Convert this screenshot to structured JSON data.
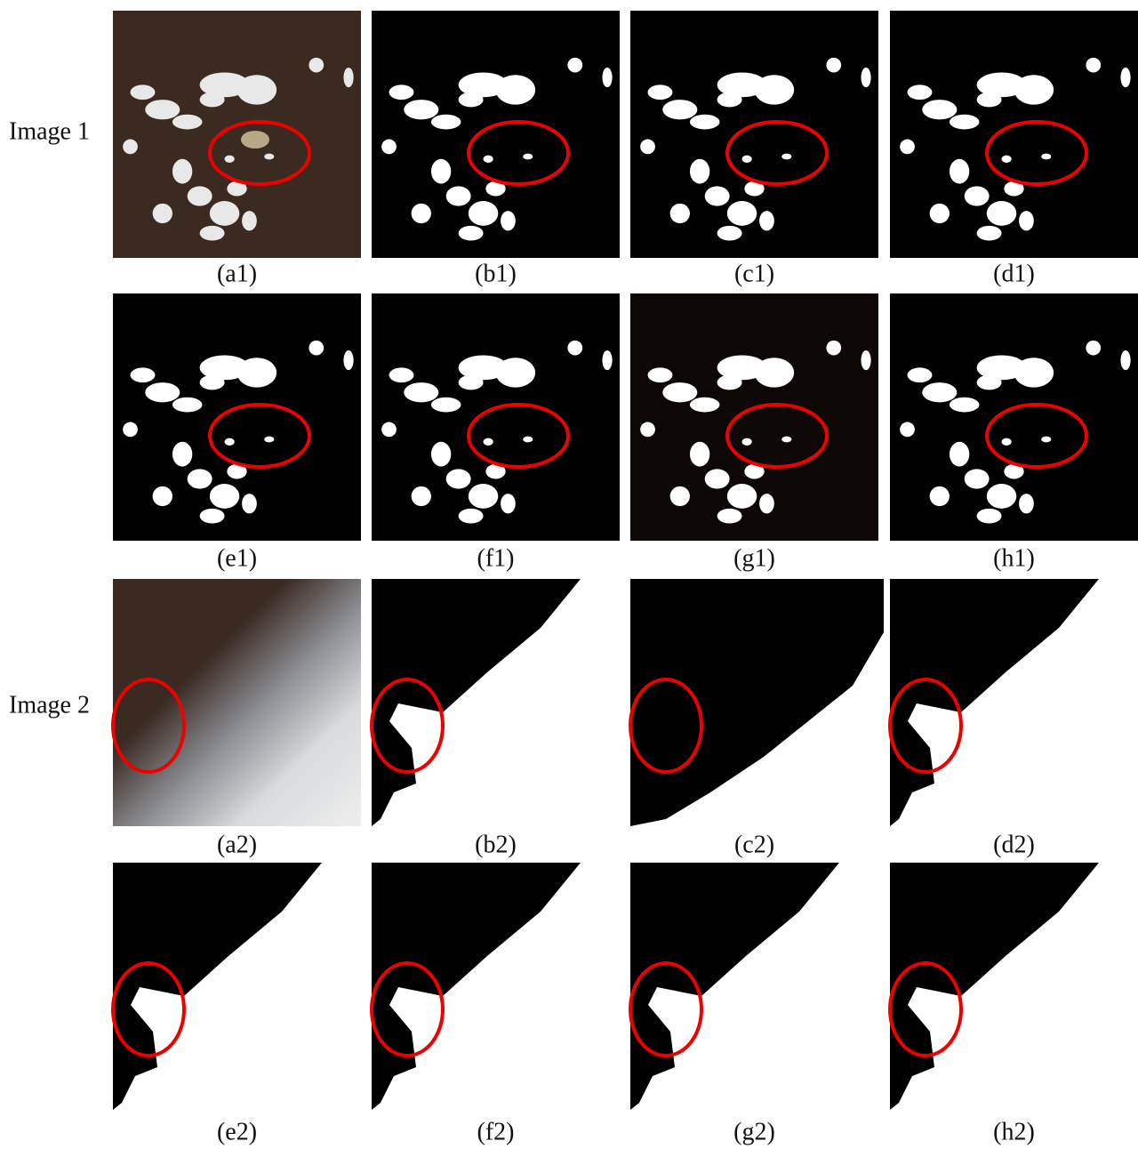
{
  "row_labels": [
    "Image 1",
    "Image 2"
  ],
  "panels": [
    [
      "(a1)",
      "(b1)",
      "(c1)",
      "(d1)"
    ],
    [
      "(e1)",
      "(f1)",
      "(g1)",
      "(h1)"
    ],
    [
      "(a2)",
      "(b2)",
      "(c2)",
      "(d2)"
    ],
    [
      "(e2)",
      "(f2)",
      "(g2)",
      "(h2)"
    ]
  ]
}
